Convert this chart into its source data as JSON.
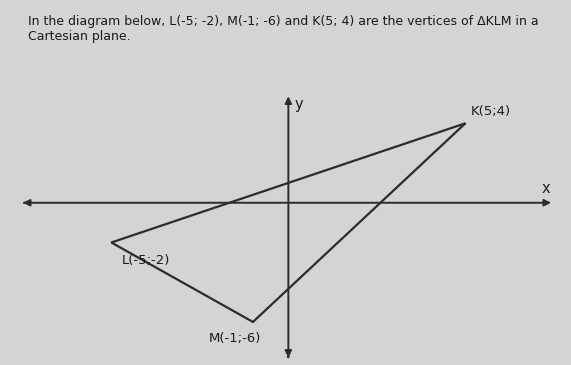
{
  "vertices": {
    "K": [
      5,
      4
    ],
    "L": [
      -5,
      -2
    ],
    "M": [
      -1,
      -6
    ]
  },
  "triangle_color": "#2c2c2c",
  "triangle_linewidth": 1.6,
  "axis_color": "#2c2c2c",
  "axis_linewidth": 1.4,
  "x_range": [
    -7.5,
    7.5
  ],
  "y_range": [
    -7.8,
    5.5
  ],
  "label_K": "K(5;4)",
  "label_L": "L(-5;-2)",
  "label_M": "M(-1;-6)",
  "label_x": "x",
  "label_y": "y",
  "title_text": "In the diagram below, L(-5; -2), M(-1; -6) and K(5; 4) are the vertices of ΔKLM in a\nCartesian plane.",
  "font_size_labels": 9.5,
  "font_size_title": 9,
  "bg_color": "#d4d4d4",
  "text_color": "#1a1a1a"
}
